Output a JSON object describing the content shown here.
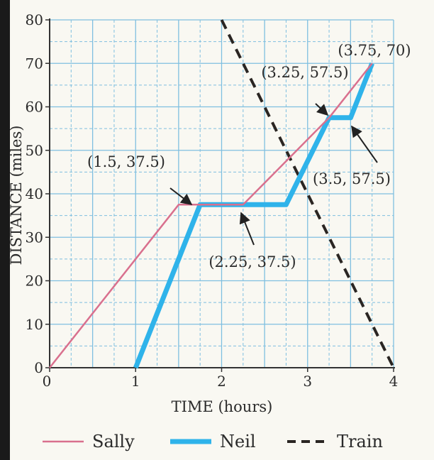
{
  "chart_data": {
    "type": "line",
    "title": "",
    "xlabel": "TIME (hours)",
    "ylabel": "DISTANCE (miles)",
    "xlim": [
      0,
      4
    ],
    "ylim": [
      0,
      80
    ],
    "x_ticks": [
      "0",
      "1",
      "2",
      "3",
      "4"
    ],
    "y_ticks": [
      "0",
      "10",
      "20",
      "30",
      "40",
      "50",
      "60",
      "70",
      "80"
    ],
    "grid": true,
    "legend_position": "bottom",
    "series": [
      {
        "name": "Sally",
        "color": "#d9708e",
        "style": "solid-thin",
        "points": [
          [
            0,
            0
          ],
          [
            1.5,
            37.5
          ],
          [
            2.25,
            37.5
          ],
          [
            3.25,
            57.5
          ],
          [
            3.75,
            70
          ]
        ]
      },
      {
        "name": "Neil",
        "color": "#2fb3ea",
        "style": "solid-thick",
        "points": [
          [
            1,
            0
          ],
          [
            1.75,
            37.5
          ],
          [
            2.75,
            37.5
          ],
          [
            3.25,
            57.5
          ],
          [
            3.5,
            57.5
          ],
          [
            3.75,
            70
          ]
        ]
      },
      {
        "name": "Train",
        "color": "#2a2522",
        "style": "dashed",
        "points": [
          [
            2,
            80
          ],
          [
            4,
            0
          ]
        ]
      }
    ],
    "annotations": [
      {
        "text": "(3.75, 70)",
        "point": [
          3.75,
          70
        ]
      },
      {
        "text": "(3.25, 57.5)",
        "point": [
          3.25,
          57.5
        ]
      },
      {
        "text": "(1.5, 37.5)",
        "point": [
          1.5,
          37.5
        ]
      },
      {
        "text": "(3.5, 57.5)",
        "point": [
          3.5,
          57.5
        ]
      },
      {
        "text": "(2.25, 37.5)",
        "point": [
          2.25,
          37.5
        ]
      }
    ]
  }
}
